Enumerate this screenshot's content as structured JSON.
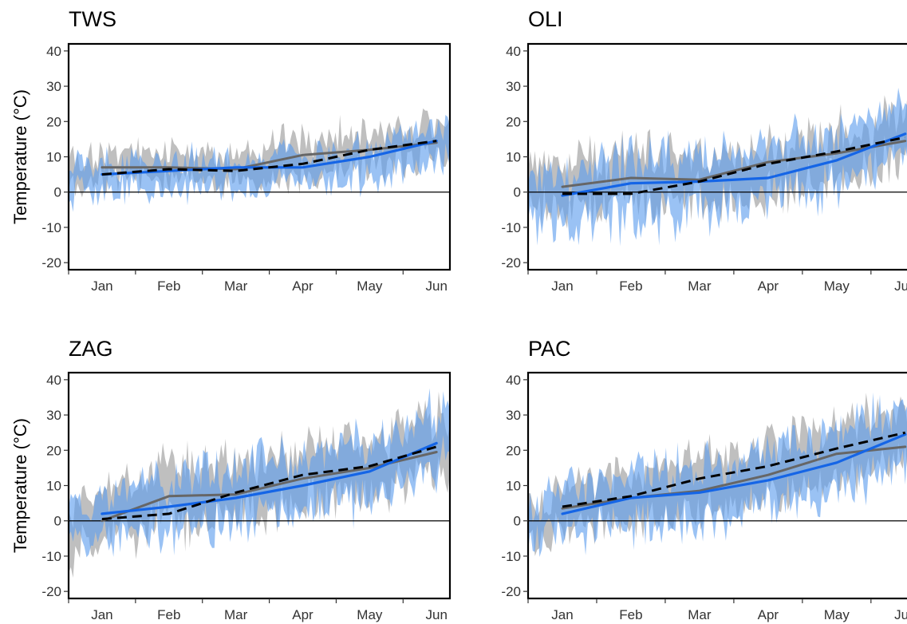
{
  "figure": {
    "ylabel": "Temperature (°C)"
  },
  "colors": {
    "gray_band": "#b4b4b4",
    "blue_band": "#5c9dee",
    "overlap_band": "#4f7fc6",
    "gray_line": "#666666",
    "blue_line": "#1565e6",
    "dashed_line": "#000000",
    "zero_line": "#000000",
    "frame": "#000000",
    "tick_text": "#333333"
  },
  "chart_data": [
    {
      "type": "area",
      "title": "TWS",
      "ylabel": "Temperature (°C)",
      "ylim": [
        -22,
        42
      ],
      "yticks": [
        -20,
        -10,
        0,
        10,
        20,
        30,
        40
      ],
      "ytick_labels": [
        "-20",
        "-10",
        "0",
        "10",
        "20",
        "30",
        "40"
      ],
      "xlim": [
        0,
        5.7
      ],
      "x_tick_labels": [
        "Jan",
        "Feb",
        "Mar",
        "Apr",
        "May",
        "Jun"
      ],
      "x_tick_label_pos": [
        0.5,
        1.5,
        2.5,
        3.5,
        4.5,
        5.5
      ],
      "x_tick_marks": [
        0,
        1,
        2,
        3,
        4,
        5
      ],
      "line_x": [
        0.5,
        1.5,
        2.5,
        3.5,
        4.5,
        5.5
      ],
      "grid": false,
      "legend": "none",
      "bands": {
        "gray": {
          "center": [
            7,
            7,
            7,
            10,
            12,
            15
          ],
          "halfwidth": [
            4,
            4,
            4,
            6,
            5,
            5
          ],
          "noise": 5
        },
        "blue": {
          "center": [
            4,
            5,
            6,
            7,
            9,
            14
          ],
          "halfwidth": [
            4,
            4,
            4,
            4,
            5,
            5
          ],
          "noise": 5
        }
      },
      "series": [
        {
          "style": "gray_line",
          "values": [
            7,
            7,
            6.5,
            10.5,
            12,
            14
          ]
        },
        {
          "style": "blue_line",
          "values": [
            5,
            6,
            7,
            7,
            10,
            14.5
          ]
        },
        {
          "style": "dashed_line",
          "values": [
            5,
            6.5,
            6,
            8,
            12,
            14.5
          ]
        }
      ]
    },
    {
      "type": "area",
      "title": "OLI",
      "ylabel": "",
      "ylim": [
        -22,
        42
      ],
      "yticks": [
        -20,
        -10,
        0,
        10,
        20,
        30,
        40
      ],
      "ytick_labels": [
        "-20",
        "-10",
        "0",
        "10",
        "20",
        "30",
        "40"
      ],
      "xlim": [
        0,
        5.7
      ],
      "x_tick_labels": [
        "Jan",
        "Feb",
        "Mar",
        "Apr",
        "May",
        "Jun"
      ],
      "x_tick_label_pos": [
        0.5,
        1.5,
        2.5,
        3.5,
        4.5,
        5.5
      ],
      "x_tick_marks": [
        0,
        1,
        2,
        3,
        4,
        5
      ],
      "line_x": [
        0.5,
        1.5,
        2.5,
        3.5,
        4.5,
        5.5
      ],
      "grid": false,
      "legend": "none",
      "bands": {
        "gray": {
          "center": [
            2,
            4,
            5,
            6,
            10,
            16
          ],
          "halfwidth": [
            7,
            7,
            7,
            7,
            7,
            6
          ],
          "noise": 7
        },
        "blue": {
          "center": [
            -2,
            1,
            3,
            5,
            9,
            19
          ],
          "halfwidth": [
            7,
            9,
            8,
            8,
            8,
            7
          ],
          "noise": 7
        }
      },
      "series": [
        {
          "style": "gray_line",
          "values": [
            1.5,
            4,
            3.5,
            8.5,
            11,
            14.5
          ]
        },
        {
          "style": "blue_line",
          "values": [
            -1,
            2.5,
            3,
            4,
            9,
            16.5
          ]
        },
        {
          "style": "dashed_line",
          "values": [
            -0.5,
            -0.5,
            3,
            8,
            11.5,
            15.5
          ]
        }
      ]
    },
    {
      "type": "area",
      "title": "ZAG",
      "ylabel": "Temperature (°C)",
      "ylim": [
        -22,
        42
      ],
      "yticks": [
        -20,
        -10,
        0,
        10,
        20,
        30,
        40
      ],
      "ytick_labels": [
        "-20",
        "-10",
        "0",
        "10",
        "20",
        "30",
        "40"
      ],
      "xlim": [
        0,
        5.7
      ],
      "x_tick_labels": [
        "Jan",
        "Feb",
        "Mar",
        "Apr",
        "May",
        "Jun"
      ],
      "x_tick_label_pos": [
        0.5,
        1.5,
        2.5,
        3.5,
        4.5,
        5.5
      ],
      "x_tick_marks": [
        0,
        1,
        2,
        3,
        4,
        5
      ],
      "line_x": [
        0.5,
        1.5,
        2.5,
        3.5,
        4.5,
        5.5
      ],
      "grid": false,
      "legend": "none",
      "bands": {
        "gray": {
          "center": [
            0,
            7,
            8,
            13,
            15,
            21
          ],
          "halfwidth": [
            7,
            8,
            8,
            8,
            8,
            8
          ],
          "noise": 7
        },
        "blue": {
          "center": [
            1,
            5,
            7,
            11,
            14,
            23
          ],
          "halfwidth": [
            6,
            8,
            8,
            8,
            8,
            8
          ],
          "noise": 7
        }
      },
      "series": [
        {
          "style": "gray_line",
          "values": [
            0,
            7,
            7.5,
            12,
            15,
            19.5
          ]
        },
        {
          "style": "blue_line",
          "values": [
            2,
            4,
            6.5,
            10,
            14,
            22
          ]
        },
        {
          "style": "dashed_line",
          "values": [
            0.5,
            2,
            8,
            13,
            15.5,
            21
          ]
        }
      ]
    },
    {
      "type": "area",
      "title": "PAC",
      "ylabel": "",
      "ylim": [
        -22,
        42
      ],
      "yticks": [
        -20,
        -10,
        0,
        10,
        20,
        30,
        40
      ],
      "ytick_labels": [
        "-20",
        "-10",
        "0",
        "10",
        "20",
        "30",
        "40"
      ],
      "xlim": [
        0,
        5.7
      ],
      "x_tick_labels": [
        "Jan",
        "Feb",
        "Mar",
        "Apr",
        "May",
        "Jun"
      ],
      "x_tick_label_pos": [
        0.5,
        1.5,
        2.5,
        3.5,
        4.5,
        5.5
      ],
      "x_tick_marks": [
        0,
        1,
        2,
        3,
        4,
        5
      ],
      "line_x": [
        0.5,
        1.5,
        2.5,
        3.5,
        4.5,
        5.5
      ],
      "grid": false,
      "legend": "none",
      "bands": {
        "gray": {
          "center": [
            3,
            7,
            9,
            14,
            19,
            23
          ],
          "halfwidth": [
            6,
            7,
            8,
            8,
            8,
            8
          ],
          "noise": 6
        },
        "blue": {
          "center": [
            2,
            6,
            8,
            12,
            17,
            25
          ],
          "halfwidth": [
            6,
            8,
            8,
            8,
            9,
            8
          ],
          "noise": 6
        }
      },
      "series": [
        {
          "style": "gray_line",
          "values": [
            3.5,
            6.5,
            8.5,
            13,
            19,
            21
          ]
        },
        {
          "style": "blue_line",
          "values": [
            2,
            6.5,
            8,
            11.5,
            16.5,
            24.5
          ]
        },
        {
          "style": "dashed_line",
          "values": [
            4,
            7,
            12,
            15.5,
            20.5,
            25
          ]
        }
      ]
    }
  ]
}
